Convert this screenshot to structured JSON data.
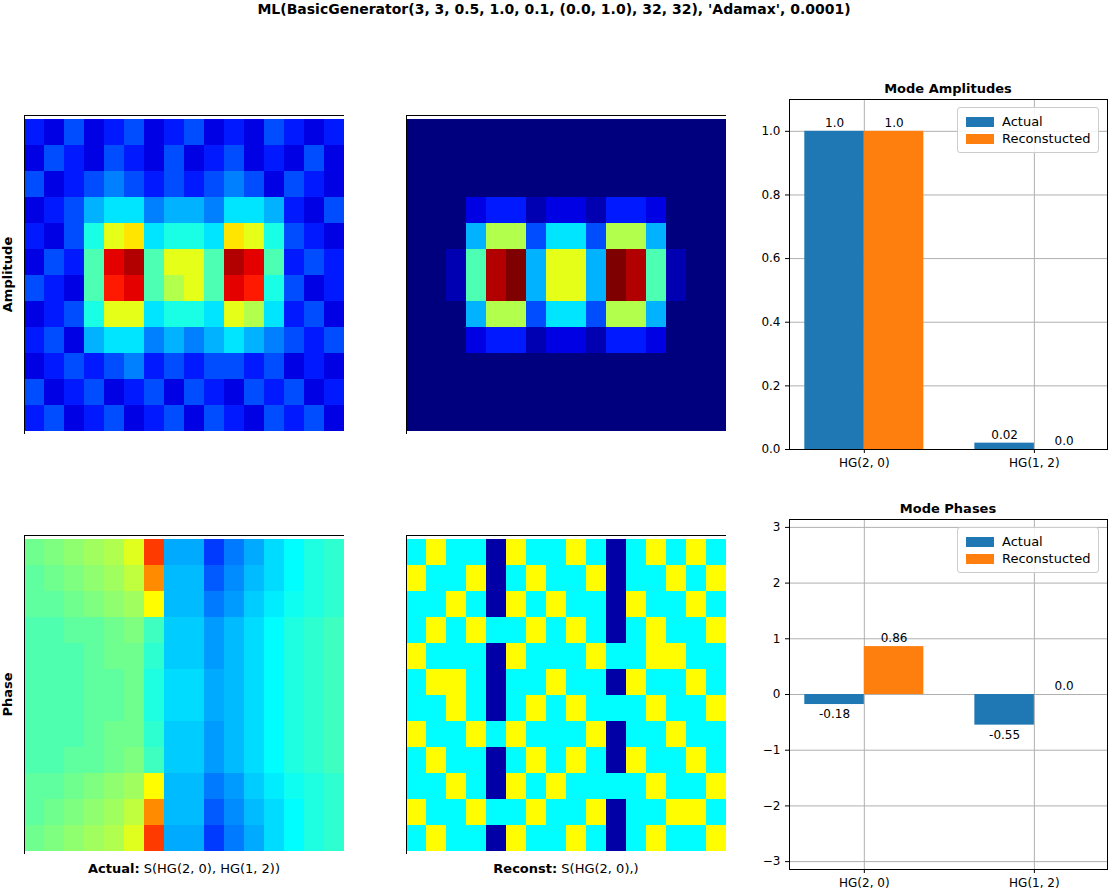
{
  "title": "ML(BasicGenerator(3, 3, 0.5, 1.0, 0.1, (0.0, 1.0), 32, 32), 'Adamax', 0.0001)",
  "chart_data": [
    {
      "type": "heatmap",
      "ylabel": "Amplitude",
      "tick_labels": false,
      "zlim": [
        0,
        1
      ],
      "cells": [
        [
          0.15,
          0.1,
          0.2,
          0.1,
          0.15,
          0.2,
          0.1,
          0.15,
          0.2,
          0.1,
          0.15,
          0.1,
          0.2,
          0.15,
          0.1,
          0.15
        ],
        [
          0.1,
          0.2,
          0.15,
          0.1,
          0.2,
          0.15,
          0.1,
          0.2,
          0.1,
          0.15,
          0.2,
          0.1,
          0.15,
          0.1,
          0.2,
          0.1
        ],
        [
          0.2,
          0.1,
          0.15,
          0.2,
          0.25,
          0.2,
          0.15,
          0.2,
          0.15,
          0.2,
          0.25,
          0.2,
          0.1,
          0.2,
          0.15,
          0.1
        ],
        [
          0.1,
          0.15,
          0.2,
          0.3,
          0.35,
          0.35,
          0.25,
          0.3,
          0.3,
          0.25,
          0.35,
          0.35,
          0.3,
          0.15,
          0.1,
          0.2
        ],
        [
          0.15,
          0.1,
          0.2,
          0.4,
          0.6,
          0.65,
          0.35,
          0.4,
          0.4,
          0.35,
          0.65,
          0.6,
          0.4,
          0.2,
          0.15,
          0.1
        ],
        [
          0.1,
          0.2,
          0.15,
          0.45,
          0.9,
          0.95,
          0.45,
          0.6,
          0.6,
          0.45,
          0.95,
          0.9,
          0.45,
          0.15,
          0.2,
          0.15
        ],
        [
          0.2,
          0.15,
          0.1,
          0.45,
          0.85,
          0.9,
          0.45,
          0.55,
          0.6,
          0.45,
          0.9,
          0.85,
          0.4,
          0.2,
          0.1,
          0.15
        ],
        [
          0.1,
          0.15,
          0.2,
          0.4,
          0.6,
          0.6,
          0.35,
          0.4,
          0.4,
          0.35,
          0.6,
          0.55,
          0.35,
          0.15,
          0.2,
          0.1
        ],
        [
          0.15,
          0.2,
          0.1,
          0.3,
          0.35,
          0.35,
          0.25,
          0.3,
          0.25,
          0.3,
          0.35,
          0.3,
          0.25,
          0.2,
          0.15,
          0.2
        ],
        [
          0.1,
          0.15,
          0.2,
          0.15,
          0.2,
          0.25,
          0.15,
          0.2,
          0.15,
          0.2,
          0.2,
          0.15,
          0.2,
          0.1,
          0.15,
          0.1
        ],
        [
          0.2,
          0.1,
          0.15,
          0.2,
          0.1,
          0.15,
          0.2,
          0.1,
          0.2,
          0.15,
          0.1,
          0.2,
          0.15,
          0.2,
          0.1,
          0.15
        ],
        [
          0.15,
          0.2,
          0.1,
          0.15,
          0.2,
          0.1,
          0.15,
          0.2,
          0.1,
          0.2,
          0.15,
          0.1,
          0.2,
          0.15,
          0.2,
          0.1
        ]
      ]
    },
    {
      "type": "heatmap",
      "tick_labels": false,
      "zlim": [
        0,
        1
      ],
      "cells": [
        [
          0,
          0,
          0,
          0,
          0,
          0,
          0,
          0,
          0,
          0,
          0,
          0,
          0,
          0,
          0,
          0
        ],
        [
          0,
          0,
          0,
          0,
          0,
          0,
          0,
          0,
          0,
          0,
          0,
          0,
          0,
          0,
          0,
          0
        ],
        [
          0,
          0,
          0,
          0,
          0,
          0,
          0,
          0,
          0,
          0,
          0,
          0,
          0,
          0,
          0,
          0
        ],
        [
          0,
          0,
          0,
          0.1,
          0.15,
          0.15,
          0.05,
          0.1,
          0.1,
          0.05,
          0.15,
          0.15,
          0.1,
          0,
          0,
          0
        ],
        [
          0,
          0,
          0,
          0.3,
          0.55,
          0.55,
          0.2,
          0.35,
          0.35,
          0.2,
          0.55,
          0.55,
          0.3,
          0,
          0,
          0
        ],
        [
          0,
          0,
          0.05,
          0.45,
          0.95,
          1.0,
          0.3,
          0.6,
          0.6,
          0.3,
          1.0,
          0.95,
          0.45,
          0.05,
          0,
          0
        ],
        [
          0,
          0,
          0.05,
          0.45,
          0.95,
          1.0,
          0.3,
          0.6,
          0.6,
          0.3,
          1.0,
          0.95,
          0.45,
          0.05,
          0,
          0
        ],
        [
          0,
          0,
          0,
          0.3,
          0.55,
          0.55,
          0.2,
          0.35,
          0.35,
          0.2,
          0.55,
          0.55,
          0.3,
          0,
          0,
          0
        ],
        [
          0,
          0,
          0,
          0.1,
          0.15,
          0.15,
          0.05,
          0.1,
          0.1,
          0.05,
          0.15,
          0.15,
          0.1,
          0,
          0,
          0
        ],
        [
          0,
          0,
          0,
          0,
          0,
          0,
          0,
          0,
          0,
          0,
          0,
          0,
          0,
          0,
          0,
          0
        ],
        [
          0,
          0,
          0,
          0,
          0,
          0,
          0,
          0,
          0,
          0,
          0,
          0,
          0,
          0,
          0,
          0
        ],
        [
          0,
          0,
          0,
          0,
          0,
          0,
          0,
          0,
          0,
          0,
          0,
          0,
          0,
          0,
          0,
          0
        ]
      ]
    },
    {
      "type": "heatmap",
      "ylabel": "Phase",
      "xlabel": "Actual: S(HG(2, 0), HG(1, 2))",
      "tick_labels": false,
      "zlim": [
        -3.14159,
        3.14159
      ],
      "cells": [
        [
          -0.1,
          0.0,
          0.1,
          0.2,
          0.3,
          0.6,
          2.0,
          -1.3,
          -1.3,
          -2.0,
          -1.6,
          -1.3,
          -1.0,
          -0.8,
          -0.6,
          -0.5
        ],
        [
          -0.2,
          -0.1,
          0.0,
          0.1,
          0.2,
          0.4,
          1.5,
          -1.2,
          -1.2,
          -1.8,
          -1.5,
          -1.2,
          -1.0,
          -0.8,
          -0.6,
          -0.5
        ],
        [
          -0.2,
          -0.2,
          -0.1,
          0.0,
          0.1,
          0.2,
          0.8,
          -1.2,
          -1.2,
          -1.6,
          -1.4,
          -1.1,
          -0.9,
          -0.7,
          -0.6,
          -0.5
        ],
        [
          -0.3,
          -0.3,
          -0.2,
          -0.2,
          -0.1,
          0.0,
          -0.4,
          -1.1,
          -1.1,
          -1.4,
          -1.2,
          -1.0,
          -0.8,
          -0.6,
          -0.5,
          -0.4
        ],
        [
          -0.3,
          -0.3,
          -0.3,
          -0.2,
          -0.1,
          -0.1,
          -0.5,
          -1.1,
          -1.1,
          -1.4,
          -1.2,
          -1.0,
          -0.8,
          -0.6,
          -0.5,
          -0.4
        ],
        [
          -0.3,
          -0.3,
          -0.3,
          -0.2,
          -0.2,
          -0.1,
          -0.6,
          -1.0,
          -1.0,
          -1.3,
          -1.2,
          -1.0,
          -0.8,
          -0.6,
          -0.5,
          -0.4
        ],
        [
          -0.3,
          -0.3,
          -0.3,
          -0.2,
          -0.2,
          -0.1,
          -0.6,
          -1.0,
          -1.0,
          -1.3,
          -1.2,
          -1.0,
          -0.8,
          -0.6,
          -0.5,
          -0.4
        ],
        [
          -0.3,
          -0.3,
          -0.3,
          -0.2,
          -0.1,
          -0.1,
          -0.5,
          -1.1,
          -1.1,
          -1.4,
          -1.2,
          -1.0,
          -0.8,
          -0.6,
          -0.5,
          -0.4
        ],
        [
          -0.3,
          -0.3,
          -0.2,
          -0.2,
          -0.1,
          0.0,
          -0.4,
          -1.1,
          -1.1,
          -1.4,
          -1.2,
          -1.0,
          -0.8,
          -0.6,
          -0.5,
          -0.4
        ],
        [
          -0.2,
          -0.2,
          -0.1,
          0.0,
          0.1,
          0.2,
          0.8,
          -1.2,
          -1.2,
          -1.6,
          -1.4,
          -1.1,
          -0.9,
          -0.7,
          -0.6,
          -0.5
        ],
        [
          -0.2,
          -0.1,
          0.0,
          0.1,
          0.2,
          0.4,
          1.5,
          -1.2,
          -1.2,
          -1.8,
          -1.5,
          -1.2,
          -1.0,
          -0.8,
          -0.6,
          -0.5
        ],
        [
          -0.1,
          0.0,
          0.1,
          0.2,
          0.3,
          0.6,
          2.0,
          -1.3,
          -1.3,
          -2.0,
          -1.6,
          -1.3,
          -1.0,
          -0.8,
          -0.6,
          -0.5
        ]
      ]
    },
    {
      "type": "heatmap",
      "xlabel": "Reconst: S(HG(2, 0),)",
      "tick_labels": false,
      "zlim": [
        -3.14159,
        3.14159
      ],
      "cells": [
        [
          -0.8,
          0.8,
          -0.8,
          -0.8,
          -2.9,
          0.8,
          -0.8,
          -0.8,
          0.8,
          -0.8,
          -2.9,
          -0.8,
          0.8,
          -0.8,
          0.8,
          -0.8
        ],
        [
          0.8,
          -0.8,
          -0.8,
          0.8,
          -2.9,
          -0.8,
          0.8,
          -0.8,
          -0.8,
          0.8,
          -2.9,
          -0.8,
          -0.8,
          0.8,
          -0.8,
          0.8
        ],
        [
          -0.8,
          -0.8,
          0.8,
          -0.8,
          -2.9,
          0.8,
          -0.8,
          0.8,
          -0.8,
          -0.8,
          -2.9,
          0.8,
          -0.8,
          -0.8,
          0.8,
          -0.8
        ],
        [
          -0.8,
          0.8,
          -0.8,
          0.8,
          -0.8,
          -0.8,
          0.8,
          -0.8,
          0.8,
          -0.8,
          -2.9,
          -0.8,
          0.8,
          -0.8,
          -0.8,
          0.8
        ],
        [
          0.8,
          -0.8,
          -0.8,
          -0.8,
          -2.9,
          0.8,
          -0.8,
          -0.8,
          -0.8,
          0.8,
          -0.8,
          -0.8,
          0.8,
          0.8,
          -0.8,
          -0.8
        ],
        [
          -0.8,
          0.8,
          0.8,
          -0.8,
          -2.9,
          -0.8,
          -0.8,
          0.8,
          -0.8,
          -0.8,
          -2.9,
          0.8,
          -0.8,
          -0.8,
          0.8,
          -0.8
        ],
        [
          -0.8,
          -0.8,
          0.8,
          -0.8,
          -2.9,
          -0.8,
          0.8,
          -0.8,
          0.8,
          -0.8,
          -0.8,
          -0.8,
          0.8,
          -0.8,
          -0.8,
          0.8
        ],
        [
          0.8,
          -0.8,
          -0.8,
          0.8,
          -0.8,
          0.8,
          -0.8,
          -0.8,
          -0.8,
          0.8,
          -2.9,
          -0.8,
          -0.8,
          0.8,
          -0.8,
          -0.8
        ],
        [
          -0.8,
          0.8,
          -0.8,
          -0.8,
          -2.9,
          -0.8,
          0.8,
          -0.8,
          0.8,
          -0.8,
          -2.9,
          0.8,
          -0.8,
          -0.8,
          0.8,
          -0.8
        ],
        [
          -0.8,
          -0.8,
          0.8,
          -0.8,
          -2.9,
          0.8,
          -0.8,
          0.8,
          -0.8,
          -0.8,
          -0.8,
          -0.8,
          0.8,
          -0.8,
          -0.8,
          0.8
        ],
        [
          0.8,
          -0.8,
          -0.8,
          0.8,
          -0.8,
          -0.8,
          0.8,
          -0.8,
          -0.8,
          0.8,
          -2.9,
          -0.8,
          -0.8,
          0.8,
          0.8,
          -0.8
        ],
        [
          -0.8,
          0.8,
          -0.8,
          -0.8,
          -2.9,
          0.8,
          -0.8,
          -0.8,
          0.8,
          -0.8,
          -2.9,
          -0.8,
          0.8,
          -0.8,
          -0.8,
          0.8
        ]
      ]
    },
    {
      "type": "bar",
      "title": "Mode Amplitudes",
      "categories": [
        "HG(2, 0)",
        "HG(1, 2)"
      ],
      "series": [
        {
          "name": "Actual",
          "color": "#1f77b4",
          "values": [
            1.0,
            0.02
          ],
          "value_labels": [
            "1.0",
            "0.02"
          ]
        },
        {
          "name": "Reconstucted",
          "color": "#ff7f0e",
          "values": [
            1.0,
            0.0
          ],
          "value_labels": [
            "1.0",
            "0.0"
          ]
        }
      ],
      "ylim": [
        0,
        1.1
      ],
      "yticks": [
        {
          "value": 0,
          "label": "0.0"
        },
        0.2,
        0.4,
        0.6,
        0.8,
        {
          "value": 1,
          "label": "1.0"
        }
      ],
      "grid": true,
      "legend": "upper right",
      "data_labels": true
    },
    {
      "type": "bar",
      "title": "Mode Phases",
      "categories": [
        "HG(2, 0)",
        "HG(1, 2)"
      ],
      "series": [
        {
          "name": "Actual",
          "color": "#1f77b4",
          "values": [
            -0.18,
            -0.55
          ]
        },
        {
          "name": "Reconstucted",
          "color": "#ff7f0e",
          "values": [
            0.86,
            0.0
          ],
          "value_labels": [
            "0.86",
            "0.0"
          ]
        }
      ],
      "ylim": [
        -3.14159,
        3.14159
      ],
      "yticks": [
        {
          "value": -3,
          "label": "−3"
        },
        {
          "value": -2,
          "label": "−2"
        },
        {
          "value": -1,
          "label": "−1"
        },
        0,
        1,
        2,
        3
      ],
      "grid": true,
      "legend": "upper right",
      "data_labels": true
    }
  ]
}
